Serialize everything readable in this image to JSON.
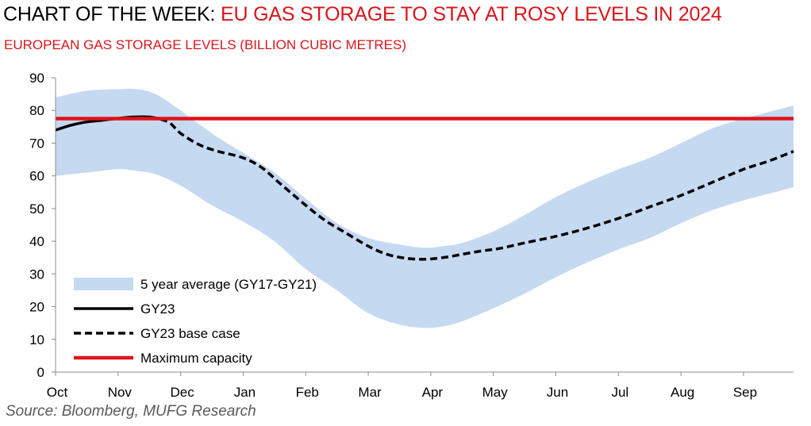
{
  "header": {
    "title_prefix": "CHART OF THE WEEK: ",
    "title_highlight": "EU GAS STORAGE TO STAY AT ROSY LEVELS IN 2024",
    "subtitle": "EUROPEAN GAS STORAGE LEVELS (BILLION CUBIC METRES)"
  },
  "footer": {
    "source": "Source: Bloomberg, MUFG Research"
  },
  "colors": {
    "band": "#c5d9f1",
    "gy23": "#000000",
    "base_case": "#000000",
    "max_capacity": "#e0141b",
    "accent": "#d9151b"
  },
  "chart_data": {
    "type": "line",
    "xlabel": "",
    "ylabel": "",
    "ylim": [
      0,
      90
    ],
    "yticks": [
      0,
      10,
      20,
      30,
      40,
      50,
      60,
      70,
      80,
      90
    ],
    "xlim": [
      0,
      11.8
    ],
    "month_labels": [
      "Oct",
      "Nov",
      "Dec",
      "Jan",
      "Feb",
      "Mar",
      "Apr",
      "May",
      "Jun",
      "Jul",
      "Aug",
      "Sep"
    ],
    "grid": false,
    "legend_position": "bottom-left",
    "series": [
      {
        "name": "5 year average (GY17-GY21)",
        "kind": "band",
        "x": [
          0,
          0.5,
          1,
          1.3,
          1.6,
          2,
          2.5,
          3,
          3.5,
          4,
          4.5,
          5,
          5.5,
          5.9,
          6.2,
          6.5,
          7,
          7.5,
          8,
          8.5,
          9,
          9.5,
          10,
          10.5,
          11,
          11.5,
          11.8
        ],
        "upper": [
          84,
          86,
          86.5,
          86.5,
          85,
          80,
          73,
          67,
          61,
          53,
          45.5,
          41,
          39,
          38,
          38.5,
          39.5,
          43,
          48,
          53.5,
          58,
          62,
          65.5,
          70,
          74.5,
          77.5,
          80,
          81.5
        ],
        "lower": [
          60,
          61,
          62,
          61.5,
          60.5,
          57,
          51,
          46,
          40,
          31.5,
          25,
          18,
          14.5,
          13.5,
          14,
          15.5,
          19.5,
          24,
          29,
          33.5,
          37.5,
          41,
          45.5,
          49.5,
          52.5,
          55,
          56.5
        ]
      },
      {
        "name": "GY23",
        "kind": "line",
        "x": [
          0,
          0.25,
          0.5,
          0.75,
          1,
          1.25,
          1.5,
          1.7
        ],
        "values": [
          74,
          75.5,
          76.5,
          77,
          77.6,
          78,
          78,
          77.3
        ]
      },
      {
        "name": "GY23 base case",
        "kind": "dashed",
        "x": [
          1.5,
          1.8,
          2,
          2.3,
          2.6,
          3,
          3.3,
          3.6,
          4,
          4.3,
          4.6,
          5,
          5.3,
          5.6,
          5.9,
          6.2,
          6.5,
          6.8,
          7.1,
          7.5,
          8,
          8.5,
          9,
          9.5,
          10,
          10.5,
          11,
          11.4,
          11.8
        ],
        "values": [
          78,
          76.5,
          73,
          69.5,
          67.5,
          65.5,
          62.5,
          57.5,
          51,
          46.5,
          43,
          38.5,
          36,
          34.8,
          34.5,
          35,
          36,
          37,
          37.8,
          39.5,
          41.5,
          44,
          47,
          50.5,
          54,
          58,
          62,
          64.5,
          67.5
        ]
      },
      {
        "name": "Maximum capacity",
        "kind": "hline",
        "value": 77.5
      }
    ]
  }
}
